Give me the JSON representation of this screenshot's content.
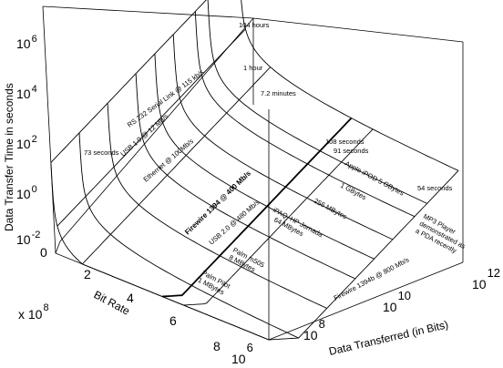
{
  "chart_data": {
    "type": "surface",
    "title": "",
    "xlabel": "Data Transferred (in Bits)",
    "ylabel": "Bit Rate",
    "zlabel": "Data Transfer Time in seconds",
    "y_multiplier": "x 10^8",
    "x_ticks": [
      {
        "base": "10",
        "exp": "6"
      },
      {
        "base": "10",
        "exp": "8"
      },
      {
        "base": "10",
        "exp": "10"
      },
      {
        "base": "10",
        "exp": "12"
      }
    ],
    "y_ticks": [
      "0",
      "2",
      "4",
      "6",
      "8"
    ],
    "z_ticks": [
      {
        "base": "10",
        "exp": "-2"
      },
      {
        "base": "10",
        "exp": "0"
      },
      {
        "base": "10",
        "exp": "2"
      },
      {
        "base": "10",
        "exp": "4"
      },
      {
        "base": "10",
        "exp": "6"
      }
    ],
    "rate_lines": [
      {
        "label": "RS 232 Serial Link @ 115 kb/s",
        "rate_bps": 115000
      },
      {
        "label": "USB 1.0 @ 12 Mb/s",
        "rate_bps": 12000000
      },
      {
        "label": "Ethernet @ 100Mb/s",
        "rate_bps": 100000000
      },
      {
        "label": "Firewire 1394 @ 400 Mb/s",
        "rate_bps": 400000000,
        "highlight": true
      },
      {
        "label": "USB 2.0 @ 480 Mb/s",
        "rate_bps": 480000000
      },
      {
        "label": "Firewire 1394b @ 800 Mb/s",
        "rate_bps": 800000000
      }
    ],
    "device_lines": [
      {
        "label": "Palm Pilot\n1 MBytes",
        "bits": 8000000
      },
      {
        "label": "Palm m505\n8 MBytes",
        "bits": 64000000
      },
      {
        "label": "iPAQ, HP Jornada\n64 MBytes",
        "bits": 512000000
      },
      {
        "label": "256 MBytes",
        "bits": 2048000000
      },
      {
        "label": "1 GBytes",
        "bits": 8000000000
      },
      {
        "label": "Apple iPOD 5 GBytes",
        "bits": 40000000000
      },
      {
        "label": "MP3 Player\ndemonstrated as\na PDA recently",
        "bits": 100000000000
      }
    ],
    "time_annotations": [
      {
        "label": "104 hours",
        "seconds": 374400
      },
      {
        "label": "1 hour",
        "seconds": 3600
      },
      {
        "label": "7.2 minutes",
        "seconds": 432
      },
      {
        "label": "73 seconds",
        "seconds": 73
      },
      {
        "label": "108 seconds",
        "seconds": 108
      },
      {
        "label": "91 seconds",
        "seconds": 91
      },
      {
        "label": "54 seconds",
        "seconds": 54
      }
    ]
  }
}
